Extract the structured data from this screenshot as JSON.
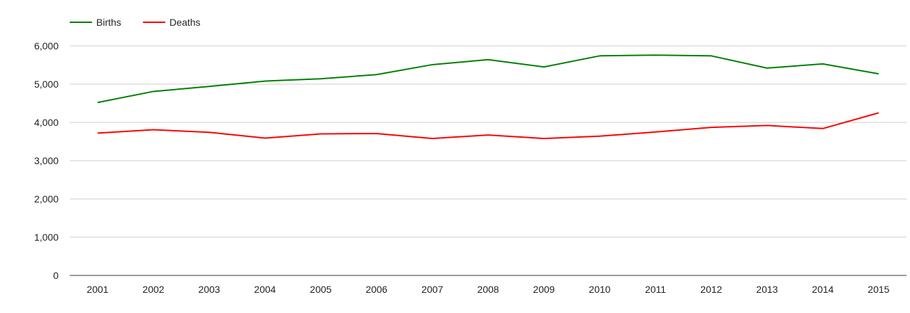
{
  "colors": {
    "births": "#008000",
    "deaths": "#ff0000",
    "grid": "#cccccc",
    "axis": "#333333",
    "text": "#222222"
  },
  "chart_data": {
    "type": "line",
    "title": "",
    "xlabel": "",
    "ylabel": "",
    "categories": [
      "2001",
      "2002",
      "2003",
      "2004",
      "2005",
      "2006",
      "2007",
      "2008",
      "2009",
      "2010",
      "2011",
      "2012",
      "2013",
      "2014",
      "2015"
    ],
    "series": [
      {
        "name": "Births",
        "color": "#008000",
        "values": [
          4520,
          4810,
          4940,
          5080,
          5140,
          5250,
          5510,
          5640,
          5450,
          5740,
          5760,
          5740,
          5420,
          5530,
          5270
        ]
      },
      {
        "name": "Deaths",
        "color": "#ff0000",
        "values": [
          3720,
          3810,
          3740,
          3590,
          3700,
          3710,
          3580,
          3670,
          3580,
          3640,
          3750,
          3870,
          3920,
          3840,
          4250
        ]
      }
    ],
    "ylim": [
      0,
      6000
    ],
    "yticks": [
      0,
      1000,
      2000,
      3000,
      4000,
      5000,
      6000
    ],
    "ytick_labels": [
      "0",
      "1,000",
      "2,000",
      "3,000",
      "4,000",
      "5,000",
      "6,000"
    ],
    "grid": true,
    "legend": "top-left"
  }
}
